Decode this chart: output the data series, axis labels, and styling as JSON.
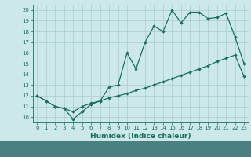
{
  "xlabel": "Humidex (Indice chaleur)",
  "bg_color": "#cce8e8",
  "axis_bg_color": "#cce8e8",
  "bottom_bar_color": "#4a8080",
  "grid_color": "#aacccc",
  "line_color": "#1a6e60",
  "xlim": [
    -0.5,
    23.5
  ],
  "ylim": [
    9.5,
    20.5
  ],
  "xticks": [
    0,
    1,
    2,
    3,
    4,
    5,
    6,
    7,
    8,
    9,
    10,
    11,
    12,
    13,
    14,
    15,
    16,
    17,
    18,
    19,
    20,
    21,
    22,
    23
  ],
  "yticks": [
    10,
    11,
    12,
    13,
    14,
    15,
    16,
    17,
    18,
    19,
    20
  ],
  "line1_x": [
    0,
    1,
    2,
    3,
    4,
    5,
    6,
    7,
    8,
    9,
    10,
    11,
    12,
    13,
    14,
    15,
    16,
    17,
    18,
    19,
    20,
    21,
    22,
    23
  ],
  "line1_y": [
    12.0,
    11.5,
    11.0,
    10.8,
    9.8,
    10.5,
    11.2,
    11.5,
    12.8,
    13.0,
    16.0,
    14.5,
    17.0,
    18.5,
    18.0,
    20.0,
    18.8,
    19.8,
    19.8,
    19.2,
    19.3,
    19.7,
    17.5,
    15.0
  ],
  "line2_x": [
    0,
    1,
    2,
    3,
    4,
    5,
    6,
    7,
    8,
    9,
    10,
    11,
    12,
    13,
    14,
    15,
    16,
    17,
    18,
    19,
    20,
    21,
    22,
    23
  ],
  "line2_y": [
    12.0,
    11.5,
    11.0,
    10.8,
    10.5,
    11.0,
    11.3,
    11.5,
    11.8,
    12.0,
    12.2,
    12.5,
    12.7,
    13.0,
    13.3,
    13.6,
    13.9,
    14.2,
    14.5,
    14.8,
    15.2,
    15.5,
    15.8,
    13.8
  ],
  "xlabel_fontsize": 6.5,
  "tick_fontsize": 5.0,
  "marker_size": 2.2,
  "linewidth": 0.9
}
